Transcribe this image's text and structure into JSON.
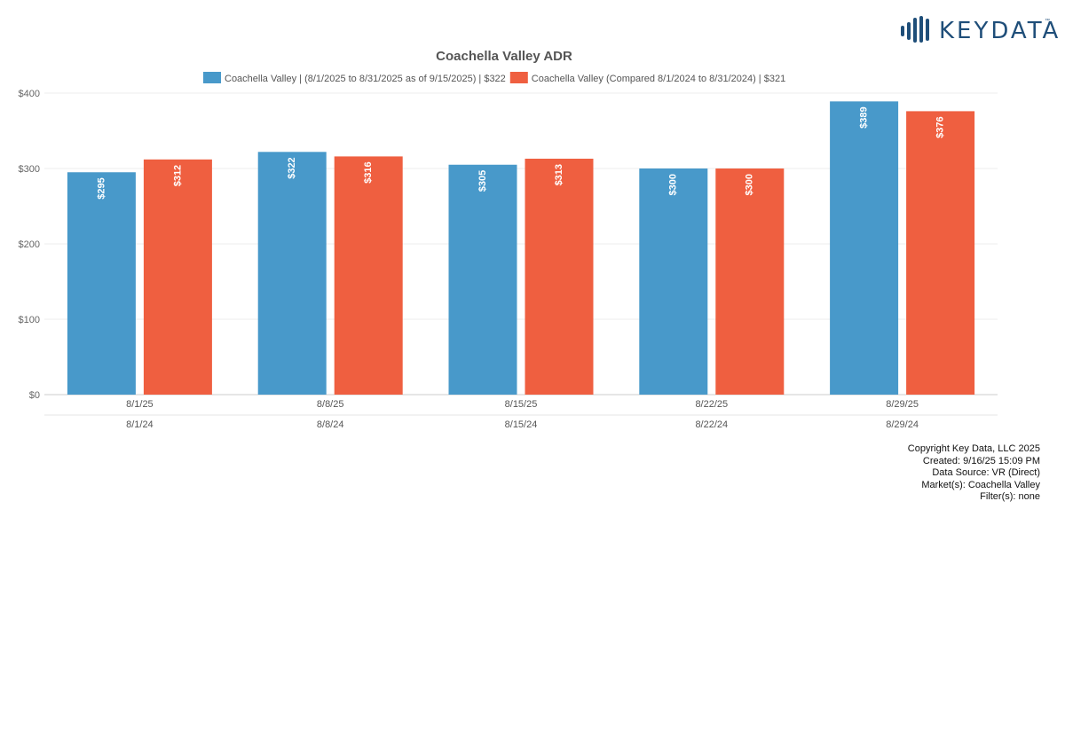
{
  "brand": {
    "logo_text": "KEYDATA",
    "logo_tm": "™",
    "logo_color": "#1f4e79"
  },
  "chart_data": {
    "type": "bar",
    "title": "Coachella Valley ADR",
    "categories": [
      "8/1/25",
      "8/8/25",
      "8/15/25",
      "8/22/25",
      "8/29/25"
    ],
    "secondary_categories": [
      "8/1/24",
      "8/8/24",
      "8/15/24",
      "8/22/24",
      "8/29/24"
    ],
    "series": [
      {
        "name": "Coachella Valley | (8/1/2025 to 8/31/2025 as of 9/15/2025) | $322",
        "color": "#4899ca",
        "values": [
          295,
          322,
          305,
          300,
          389
        ],
        "labels": [
          "$295",
          "$322",
          "$305",
          "$300",
          "$389"
        ]
      },
      {
        "name": "Coachella Valley (Compared 8/1/2024 to 8/31/2024) | $321",
        "color": "#ef5f40",
        "values": [
          312,
          316,
          313,
          300,
          376
        ],
        "labels": [
          "$312",
          "$316",
          "$313",
          "$300",
          "$376"
        ]
      }
    ],
    "ylim": [
      0,
      400
    ],
    "yticks": [
      0,
      100,
      200,
      300,
      400
    ],
    "ytick_labels": [
      "$0",
      "$100",
      "$200",
      "$300",
      "$400"
    ],
    "xlabel": "",
    "ylabel": "",
    "legend": "top-center",
    "grid": true
  },
  "footer": {
    "copyright": "Copyright Key Data, LLC 2025",
    "created": "Created: 9/16/25 15:09 PM",
    "data_source": "Data Source: VR (Direct)",
    "markets": "Market(s):  Coachella Valley",
    "filters": "Filter(s): none"
  }
}
